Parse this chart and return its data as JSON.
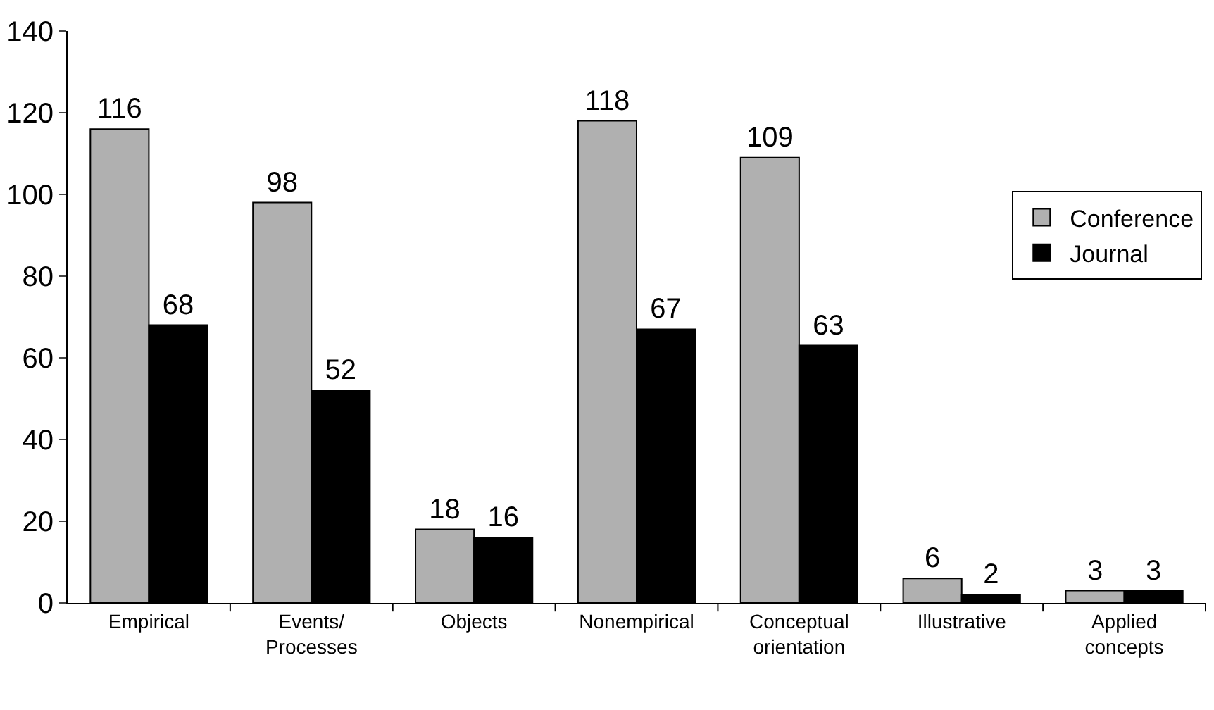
{
  "chart_data": {
    "type": "bar",
    "categories": [
      "Empirical",
      "Events/\nProcesses",
      "Objects",
      "Nonempirical",
      "Conceptual\norientation",
      "Illustrative",
      "Applied\nconcepts"
    ],
    "series": [
      {
        "name": "Conference",
        "color": "#b0b0b0",
        "values": [
          116,
          98,
          18,
          118,
          109,
          6,
          3
        ]
      },
      {
        "name": "Journal",
        "color": "#000000",
        "values": [
          68,
          52,
          16,
          67,
          63,
          2,
          3
        ]
      }
    ],
    "ylim": [
      0,
      140
    ],
    "yticks": [
      0,
      20,
      40,
      60,
      80,
      100,
      120,
      140
    ],
    "data_labels": true,
    "legend": "right"
  }
}
